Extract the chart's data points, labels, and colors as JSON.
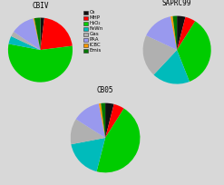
{
  "charts": [
    {
      "label": "CBIV",
      "values": [
        2.0,
        21.0,
        55.0,
        4.0,
        2.5,
        12.0,
        0.5,
        3.0
      ],
      "startangle": 90
    },
    {
      "label": "SAPRC99",
      "values": [
        4.0,
        5.0,
        35.0,
        18.0,
        20.0,
        15.0,
        1.0,
        2.0
      ],
      "startangle": 90
    },
    {
      "label": "CB05",
      "values": [
        4.0,
        5.0,
        45.0,
        18.0,
        12.0,
        13.0,
        1.0,
        2.0
      ],
      "startangle": 90
    }
  ],
  "legend_labels": [
    "O₃",
    "MHP",
    "H₂O₂",
    "FeWn",
    "Gas",
    "PAA",
    "ICBC",
    "Emis"
  ],
  "colors": [
    "#111111",
    "#ff0000",
    "#00cc00",
    "#00bbbb",
    "#b0b0b0",
    "#9999ee",
    "#ff9900",
    "#007700"
  ],
  "background_color": "#d8d8d8"
}
